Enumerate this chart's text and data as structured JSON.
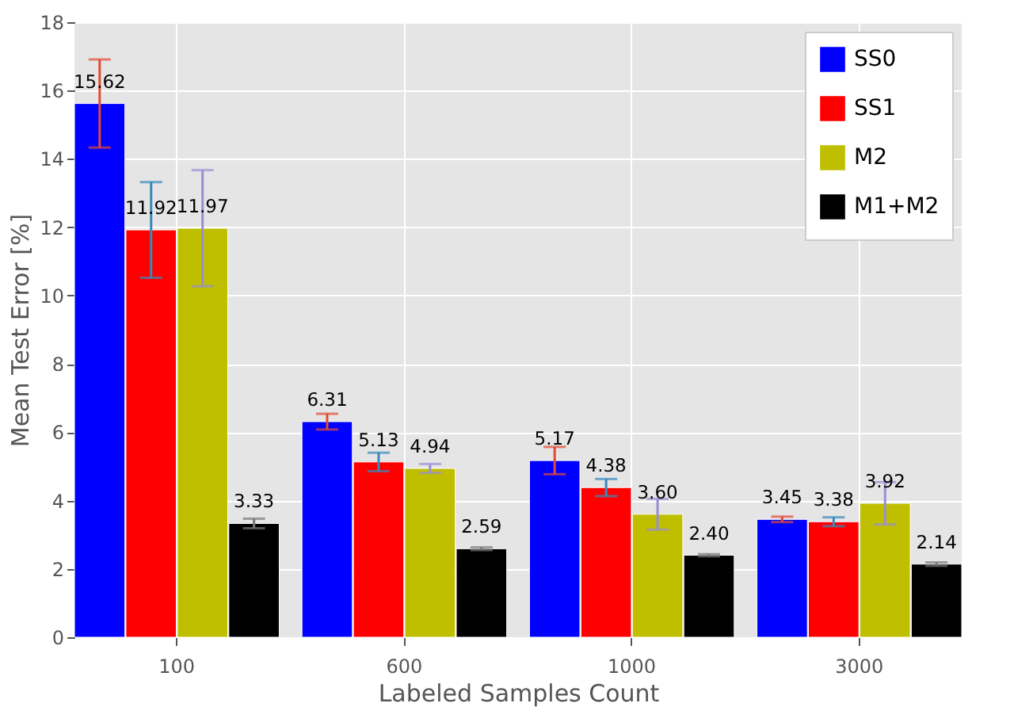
{
  "chart_data": {
    "type": "bar",
    "xlabel": "Labeled Samples Count",
    "ylabel": "Mean Test Error [%]",
    "categories": [
      "100",
      "600",
      "1000",
      "3000"
    ],
    "series": [
      {
        "name": "SS0",
        "color": "#0000ff",
        "values": [
          15.62,
          6.31,
          5.17,
          3.45
        ],
        "errors": [
          1.29,
          0.23,
          0.4,
          0.08
        ],
        "value_labels": [
          "15.62",
          "6.31",
          "5.17",
          "3.45"
        ]
      },
      {
        "name": "SS1",
        "color": "#ff0000",
        "values": [
          11.92,
          5.13,
          4.38,
          3.38
        ],
        "errors": [
          1.4,
          0.27,
          0.25,
          0.13
        ],
        "value_labels": [
          "11.92",
          "5.13",
          "4.38",
          "3.38"
        ]
      },
      {
        "name": "M2",
        "color": "#bfbf00",
        "values": [
          11.97,
          4.94,
          3.6,
          3.92
        ],
        "errors": [
          1.7,
          0.13,
          0.45,
          0.62
        ],
        "value_labels": [
          "11.97",
          "4.94",
          "3.60",
          "3.92"
        ]
      },
      {
        "name": "M1+M2",
        "color": "#000000",
        "values": [
          3.33,
          2.59,
          2.4,
          2.14
        ],
        "errors": [
          0.14,
          0.04,
          0.03,
          0.05
        ],
        "value_labels": [
          "3.33",
          "2.59",
          "2.40",
          "2.14"
        ]
      }
    ],
    "ylim": [
      0,
      18
    ],
    "yticks": [
      0,
      2,
      4,
      6,
      8,
      10,
      12,
      14,
      16,
      18
    ],
    "grid": true,
    "legend": "top right"
  }
}
